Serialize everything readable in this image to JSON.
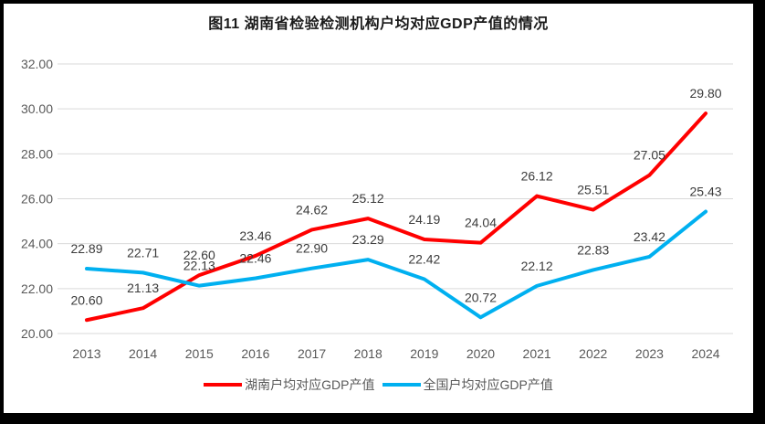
{
  "title": "图11 湖南省检验检测机构户均对应GDP产值的情况",
  "chart_data": {
    "type": "line",
    "title": "图11 湖南省检验检测机构户均对应GDP产值的情况",
    "categories": [
      "2013",
      "2014",
      "2015",
      "2016",
      "2017",
      "2018",
      "2019",
      "2020",
      "2021",
      "2022",
      "2023",
      "2024"
    ],
    "series": [
      {
        "name": "湖南户均对应GDP产值",
        "color": "#FF0000",
        "values": [
          20.6,
          21.13,
          22.6,
          23.46,
          24.62,
          25.12,
          24.19,
          24.04,
          26.12,
          25.51,
          27.05,
          29.8
        ]
      },
      {
        "name": "全国户均对应GDP产值",
        "color": "#00B0F0",
        "values": [
          22.89,
          22.71,
          22.13,
          22.46,
          22.9,
          23.29,
          22.42,
          20.72,
          22.12,
          22.83,
          23.42,
          25.43
        ]
      }
    ],
    "ylim": [
      20,
      32
    ],
    "yticks": [
      "20.00",
      "22.00",
      "24.00",
      "26.00",
      "28.00",
      "30.00",
      "32.00"
    ],
    "grid": true,
    "data_labels": true,
    "label_decimals": 2,
    "legend_position": "bottom"
  },
  "styles": {
    "gridline_color": "#D9D9D9",
    "axis_label_color": "#595959",
    "data_label_color": "#3B3B3B",
    "legend_text_color": "#595959",
    "frame_border_color": "#000000",
    "background_color": "#FFFFFF"
  }
}
